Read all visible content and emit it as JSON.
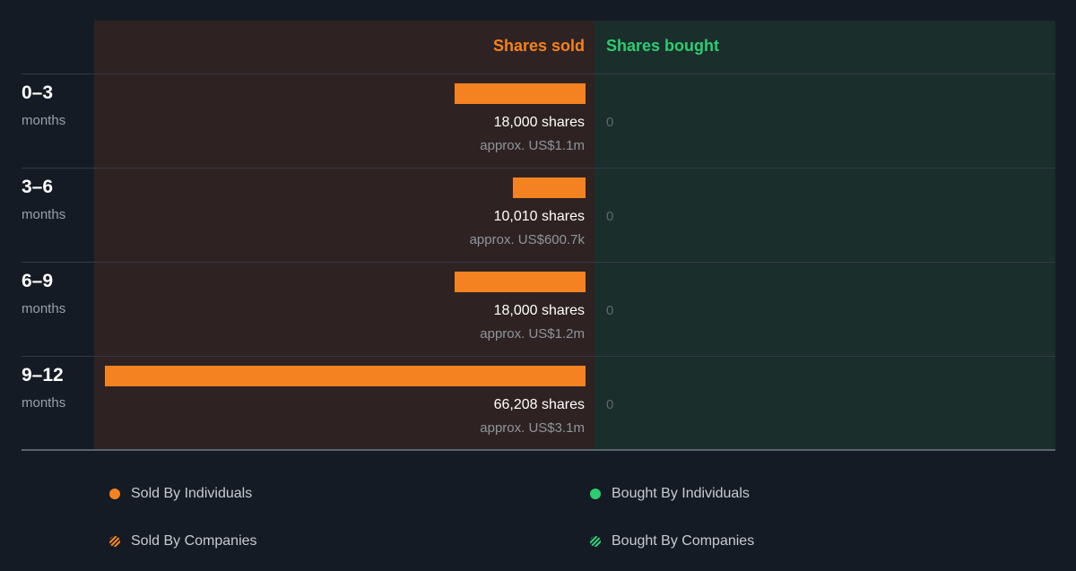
{
  "header": {
    "sold_label": "Shares sold",
    "bought_label": "Shares bought"
  },
  "chart_data": {
    "type": "bar",
    "categories": [
      "0–3",
      "3–6",
      "6–9",
      "9–12"
    ],
    "period_unit": "months",
    "series": [
      {
        "name": "Shares sold",
        "values": [
          18000,
          10010,
          18000,
          66208
        ]
      },
      {
        "name": "Shares bought",
        "values": [
          0,
          0,
          0,
          0
        ]
      }
    ],
    "sold_labels": [
      "18,000 shares",
      "10,010 shares",
      "18,000 shares",
      "66,208 shares"
    ],
    "sold_approx": [
      "approx. US$1.1m",
      "approx. US$600.7k",
      "approx. US$1.2m",
      "approx. US$3.1m"
    ],
    "bought_labels": [
      "0",
      "0",
      "0",
      "0"
    ],
    "legend": [
      {
        "label": "Sold By Individuals",
        "marker": "dot",
        "color": "#f58220"
      },
      {
        "label": "Bought By Individuals",
        "marker": "dot",
        "color": "#2ecc71"
      },
      {
        "label": "Sold By Companies",
        "marker": "hatched-dot",
        "color": "#f58220"
      },
      {
        "label": "Bought By Companies",
        "marker": "hatched-dot",
        "color": "#2ecc71"
      }
    ],
    "colors": {
      "sold": "#f58220",
      "bought": "#2ecc71",
      "sold_panel": "#2e2322",
      "bought_panel": "#1a2e2c"
    }
  }
}
